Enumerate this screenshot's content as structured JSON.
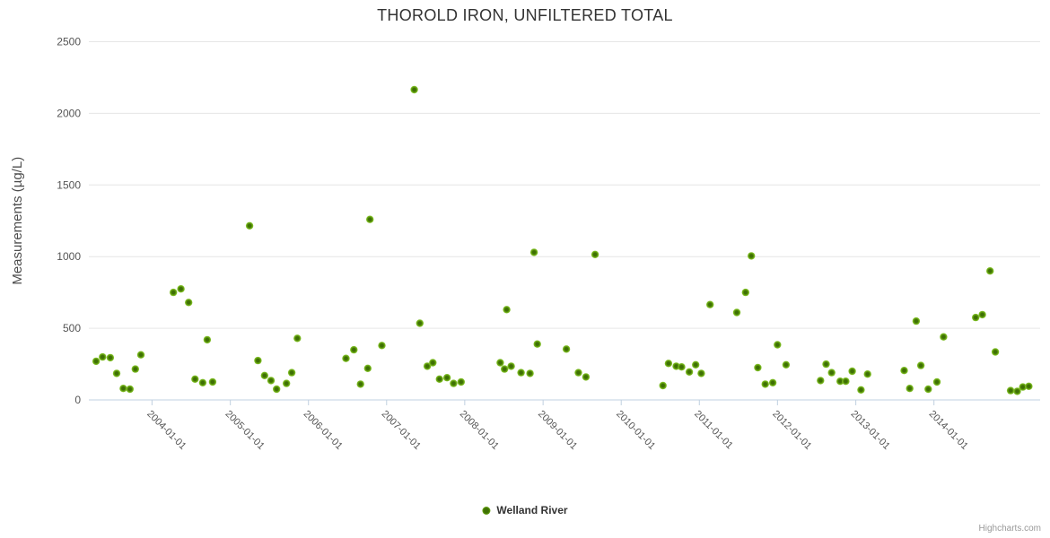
{
  "chart": {
    "credit": "Highcharts.com"
  },
  "chart_data": {
    "type": "scatter",
    "title": "THOROLD IRON, UNFILTERED TOTAL",
    "xlabel": "",
    "ylabel": "Measurements (µg/L)",
    "ylim": [
      0,
      2500
    ],
    "y_ticks": [
      0,
      500,
      1000,
      1500,
      2000,
      2500
    ],
    "x_ticks": [
      "2004-01-01",
      "2005-01-01",
      "2006-01-01",
      "2007-01-01",
      "2008-01-01",
      "2009-01-01",
      "2010-01-01",
      "2011-01-01",
      "2012-01-01",
      "2013-01-01",
      "2014-01-01"
    ],
    "x_range": [
      "2003-03-12",
      "2015-05-12"
    ],
    "grid": "horizontal-only",
    "legend_position": "bottom-center",
    "colors": {
      "marker_core": "#3e7004",
      "marker_rim": "#8ec93e",
      "marker_mid": "#6fae14",
      "grid_line": "#e6e6e6",
      "axis_line": "#c0d0e0",
      "tick_label": "#555555",
      "axis_title": "#4d4d4d",
      "title": "#333333",
      "credit": "#999999"
    },
    "series": [
      {
        "name": "Welland River",
        "points": [
          {
            "date": "2003-04-15",
            "value": 270
          },
          {
            "date": "2003-05-15",
            "value": 300
          },
          {
            "date": "2003-06-20",
            "value": 295
          },
          {
            "date": "2003-07-20",
            "value": 185
          },
          {
            "date": "2003-08-20",
            "value": 80
          },
          {
            "date": "2003-09-20",
            "value": 75
          },
          {
            "date": "2003-10-15",
            "value": 215
          },
          {
            "date": "2003-11-10",
            "value": 315
          },
          {
            "date": "2004-04-10",
            "value": 750
          },
          {
            "date": "2004-05-15",
            "value": 775
          },
          {
            "date": "2004-06-20",
            "value": 680
          },
          {
            "date": "2004-07-20",
            "value": 145
          },
          {
            "date": "2004-08-25",
            "value": 120
          },
          {
            "date": "2004-09-15",
            "value": 420
          },
          {
            "date": "2004-10-10",
            "value": 125
          },
          {
            "date": "2005-04-01",
            "value": 1215
          },
          {
            "date": "2005-05-10",
            "value": 275
          },
          {
            "date": "2005-06-10",
            "value": 170
          },
          {
            "date": "2005-07-10",
            "value": 135
          },
          {
            "date": "2005-08-05",
            "value": 75
          },
          {
            "date": "2005-09-20",
            "value": 115
          },
          {
            "date": "2005-10-15",
            "value": 190
          },
          {
            "date": "2005-11-10",
            "value": 430
          },
          {
            "date": "2006-06-25",
            "value": 290
          },
          {
            "date": "2006-08-01",
            "value": 350
          },
          {
            "date": "2006-09-01",
            "value": 110
          },
          {
            "date": "2006-10-05",
            "value": 220
          },
          {
            "date": "2006-10-15",
            "value": 1260
          },
          {
            "date": "2006-12-10",
            "value": 380
          },
          {
            "date": "2007-05-10",
            "value": 2165
          },
          {
            "date": "2007-06-05",
            "value": 535
          },
          {
            "date": "2007-07-10",
            "value": 235
          },
          {
            "date": "2007-08-05",
            "value": 260
          },
          {
            "date": "2007-09-05",
            "value": 145
          },
          {
            "date": "2007-10-10",
            "value": 155
          },
          {
            "date": "2007-11-10",
            "value": 115
          },
          {
            "date": "2007-12-15",
            "value": 125
          },
          {
            "date": "2008-06-15",
            "value": 260
          },
          {
            "date": "2008-07-05",
            "value": 215
          },
          {
            "date": "2008-07-15",
            "value": 630
          },
          {
            "date": "2008-08-05",
            "value": 235
          },
          {
            "date": "2008-09-20",
            "value": 190
          },
          {
            "date": "2008-11-01",
            "value": 185
          },
          {
            "date": "2008-11-20",
            "value": 1030
          },
          {
            "date": "2008-12-05",
            "value": 390
          },
          {
            "date": "2009-04-20",
            "value": 355
          },
          {
            "date": "2009-06-15",
            "value": 190
          },
          {
            "date": "2009-07-20",
            "value": 160
          },
          {
            "date": "2009-09-01",
            "value": 1015
          },
          {
            "date": "2010-07-15",
            "value": 100
          },
          {
            "date": "2010-08-10",
            "value": 255
          },
          {
            "date": "2010-09-15",
            "value": 235
          },
          {
            "date": "2010-10-10",
            "value": 230
          },
          {
            "date": "2010-11-15",
            "value": 195
          },
          {
            "date": "2010-12-15",
            "value": 245
          },
          {
            "date": "2011-01-10",
            "value": 185
          },
          {
            "date": "2011-02-20",
            "value": 665
          },
          {
            "date": "2011-06-25",
            "value": 610
          },
          {
            "date": "2011-08-05",
            "value": 750
          },
          {
            "date": "2011-09-01",
            "value": 1005
          },
          {
            "date": "2011-10-01",
            "value": 225
          },
          {
            "date": "2011-11-05",
            "value": 110
          },
          {
            "date": "2011-12-10",
            "value": 120
          },
          {
            "date": "2012-01-01",
            "value": 385
          },
          {
            "date": "2012-02-10",
            "value": 245
          },
          {
            "date": "2012-07-20",
            "value": 135
          },
          {
            "date": "2012-08-15",
            "value": 250
          },
          {
            "date": "2012-09-10",
            "value": 190
          },
          {
            "date": "2012-10-20",
            "value": 130
          },
          {
            "date": "2012-11-15",
            "value": 130
          },
          {
            "date": "2012-12-15",
            "value": 200
          },
          {
            "date": "2013-01-25",
            "value": 70
          },
          {
            "date": "2013-02-25",
            "value": 180
          },
          {
            "date": "2013-08-15",
            "value": 205
          },
          {
            "date": "2013-09-10",
            "value": 80
          },
          {
            "date": "2013-10-10",
            "value": 550
          },
          {
            "date": "2013-11-01",
            "value": 240
          },
          {
            "date": "2013-12-05",
            "value": 75
          },
          {
            "date": "2014-01-15",
            "value": 125
          },
          {
            "date": "2014-02-15",
            "value": 440
          },
          {
            "date": "2014-07-15",
            "value": 575
          },
          {
            "date": "2014-08-15",
            "value": 595
          },
          {
            "date": "2014-09-20",
            "value": 900
          },
          {
            "date": "2014-10-15",
            "value": 335
          },
          {
            "date": "2014-12-25",
            "value": 65
          },
          {
            "date": "2015-01-25",
            "value": 60
          },
          {
            "date": "2015-02-20",
            "value": 90
          },
          {
            "date": "2015-03-20",
            "value": 95
          }
        ]
      }
    ]
  }
}
